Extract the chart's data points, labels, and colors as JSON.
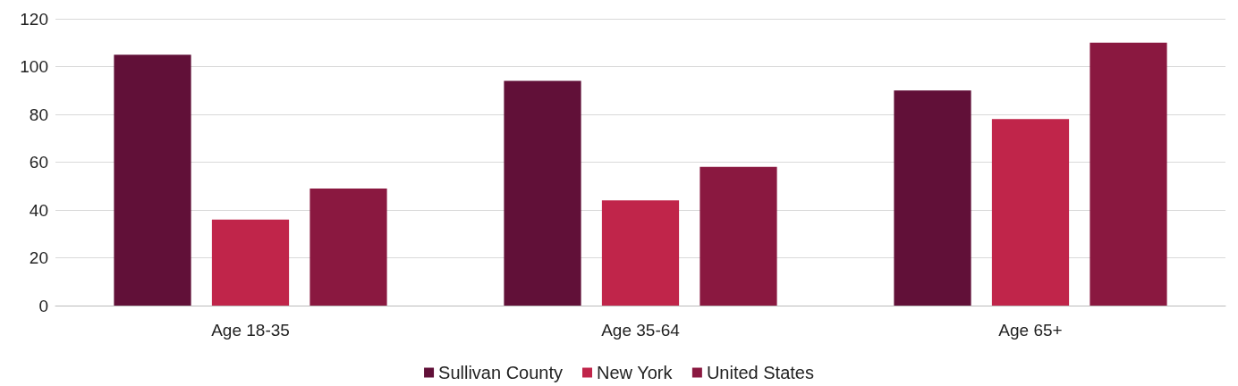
{
  "chart_data": {
    "type": "bar",
    "categories": [
      "Age 18-35",
      "Age 35-64",
      "Age 65+"
    ],
    "series": [
      {
        "name": "Sullivan County",
        "color": "#611038",
        "values": [
          105,
          94,
          90
        ]
      },
      {
        "name": "New York",
        "color": "#c0254a",
        "values": [
          36,
          44,
          78
        ]
      },
      {
        "name": "United States",
        "color": "#8a1840",
        "values": [
          49,
          58,
          110
        ]
      }
    ],
    "ylim": [
      0,
      120
    ],
    "yticks": [
      0,
      20,
      40,
      60,
      80,
      100,
      120
    ],
    "grid": "y",
    "legend": "bottom"
  }
}
